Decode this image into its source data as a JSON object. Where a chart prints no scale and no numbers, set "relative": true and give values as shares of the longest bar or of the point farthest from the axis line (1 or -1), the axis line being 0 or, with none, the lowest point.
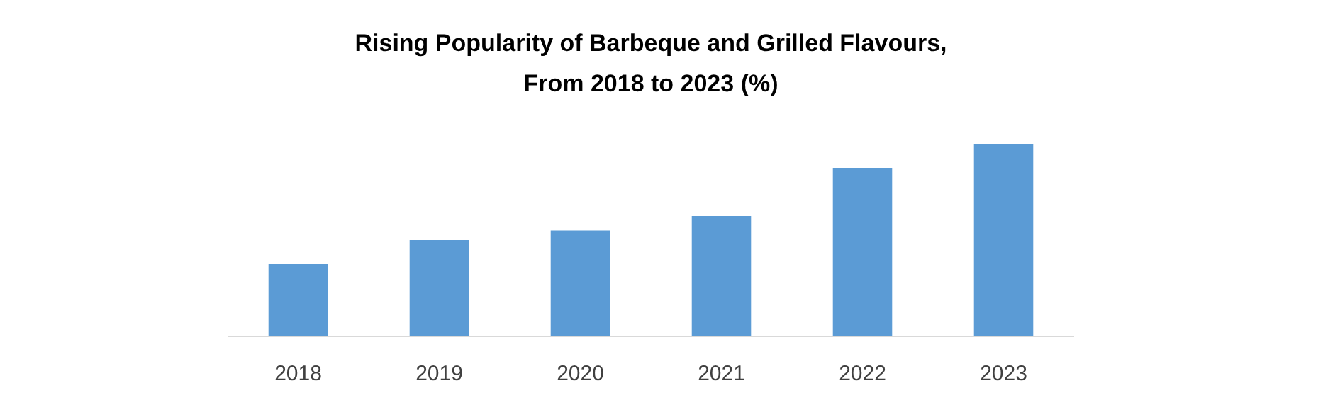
{
  "chart_data": {
    "type": "bar",
    "title": "Rising Popularity of Barbeque and Grilled Flavours,\nFrom 2018 to 2023 (%)",
    "categories": [
      "2018",
      "2019",
      "2020",
      "2021",
      "2022",
      "2023"
    ],
    "values": [
      0.375,
      0.5,
      0.55,
      0.625,
      0.875,
      1
    ],
    "color": "#5b9bd5",
    "relative": true,
    "grid": false
  }
}
